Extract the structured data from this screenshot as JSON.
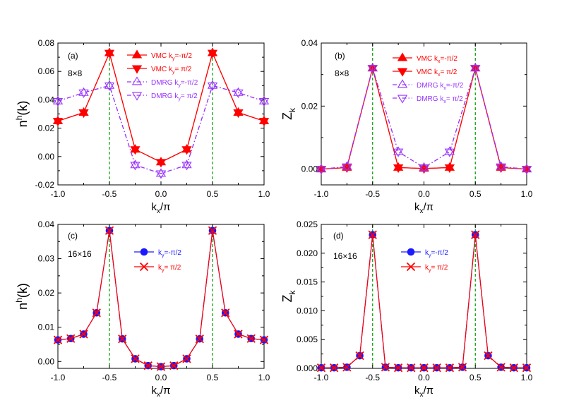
{
  "colors": {
    "vmc": "#ff0000",
    "dmrg": "#9933ff",
    "blue": "#1a1aff",
    "guide": "#009900"
  },
  "chart_data": [
    {
      "id": "a",
      "type": "line",
      "panel_label": "(a)",
      "size_label": "8×8",
      "xlabel": "kx/π",
      "ylabel": "nh(k)",
      "ylabel_sup": "h",
      "ylabel_base": "n",
      "ylabel_tail": "(k)",
      "xlim": [
        -1.0,
        1.0
      ],
      "ylim": [
        -0.02,
        0.08
      ],
      "xticks": [
        "-1.0",
        "-0.5",
        "0.0",
        "0.5",
        "1.0"
      ],
      "xtick_values": [
        -1.0,
        -0.5,
        0.0,
        0.5,
        1.0
      ],
      "yticks": [
        "-0.02",
        "0.00",
        "0.02",
        "0.04",
        "0.06",
        "0.08"
      ],
      "ytick_values": [
        -0.02,
        0.0,
        0.02,
        0.04,
        0.06,
        0.08
      ],
      "guides": [
        -0.5,
        0.5
      ],
      "series": [
        {
          "method": "VMC",
          "k": "ky=-π/2",
          "k_sub": "y",
          "k_val": "=-π/2",
          "marker": "tri-up-filled",
          "color": "#ff0000",
          "dash": "",
          "x": [
            -1.0,
            -0.75,
            -0.5,
            -0.25,
            0.0,
            0.25,
            0.5,
            0.75,
            1.0
          ],
          "values": [
            0.025,
            0.031,
            0.073,
            0.005,
            -0.004,
            0.005,
            0.073,
            0.031,
            0.025
          ]
        },
        {
          "method": "VMC",
          "k": "ky= π/2",
          "k_sub": "y",
          "k_val": "= π/2",
          "marker": "tri-down-filled",
          "color": "#ff0000",
          "dash": "",
          "x": [
            -1.0,
            -0.75,
            -0.5,
            -0.25,
            0.0,
            0.25,
            0.5,
            0.75,
            1.0
          ],
          "values": [
            0.025,
            0.031,
            0.073,
            0.005,
            -0.004,
            0.005,
            0.073,
            0.031,
            0.025
          ]
        },
        {
          "method": "DMRG",
          "k": "ky=-π/2",
          "k_sub": "y",
          "k_val": "=-π/2",
          "marker": "tri-up-open",
          "color": "#9933ff",
          "dash": "6,3,1.5,3",
          "x": [
            -1.0,
            -0.75,
            -0.5,
            -0.25,
            0.0,
            0.25,
            0.5,
            0.75,
            1.0
          ],
          "values": [
            0.039,
            0.045,
            0.05,
            -0.006,
            -0.012,
            -0.006,
            0.05,
            0.045,
            0.039
          ]
        },
        {
          "method": "DMRG",
          "k": "ky= π/2",
          "k_sub": "y",
          "k_val": "= π/2",
          "marker": "tri-down-open",
          "color": "#9933ff",
          "dash": "6,3,1.5,3",
          "x": [
            -1.0,
            -0.75,
            -0.5,
            -0.25,
            0.0,
            0.25,
            0.5,
            0.75,
            1.0
          ],
          "values": [
            0.039,
            0.045,
            0.05,
            -0.006,
            -0.012,
            -0.006,
            0.05,
            0.045,
            0.039
          ]
        }
      ]
    },
    {
      "id": "b",
      "type": "line",
      "panel_label": "(b)",
      "size_label": "8×8",
      "xlabel": "kx/π",
      "ylabel": "Zk",
      "ylabel_base": "Z",
      "ylabel_sub": "k",
      "xlim": [
        -1.0,
        1.0
      ],
      "ylim": [
        -0.005,
        0.04
      ],
      "xticks": [
        "-1.0",
        "-0.5",
        "0.0",
        "0.5",
        "1.0"
      ],
      "xtick_values": [
        -1.0,
        -0.5,
        0.0,
        0.5,
        1.0
      ],
      "yticks": [
        "0.00",
        "0.02",
        "0.04"
      ],
      "ytick_values": [
        0.0,
        0.02,
        0.04
      ],
      "guides": [
        -0.5,
        0.5
      ],
      "series": [
        {
          "method": "VMC",
          "k": "kx=-π/2",
          "k_sub": "x",
          "k_val": "=-π/2",
          "marker": "tri-up-filled",
          "color": "#ff0000",
          "dash": "",
          "x": [
            -1.0,
            -0.75,
            -0.5,
            -0.25,
            0.0,
            0.25,
            0.5,
            0.75,
            1.0
          ],
          "values": [
            0.0,
            0.0005,
            0.032,
            0.0005,
            0.0002,
            0.0005,
            0.032,
            0.0005,
            0.0
          ]
        },
        {
          "method": "VMC",
          "k": "kx= π/2",
          "k_sub": "x",
          "k_val": "= π/2",
          "marker": "tri-down-filled",
          "color": "#ff0000",
          "dash": "",
          "x": [
            -1.0,
            -0.75,
            -0.5,
            -0.25,
            0.0,
            0.25,
            0.5,
            0.75,
            1.0
          ],
          "values": [
            0.0,
            0.0005,
            0.032,
            0.0005,
            0.0002,
            0.0005,
            0.032,
            0.0005,
            0.0
          ]
        },
        {
          "method": "DMRG",
          "k": "kx=-π/2",
          "k_sub": "x",
          "k_val": "=-π/2",
          "marker": "tri-up-open",
          "color": "#9933ff",
          "dash": "6,3,1.5,3",
          "x": [
            -1.0,
            -0.75,
            -0.5,
            -0.25,
            0.0,
            0.25,
            0.5,
            0.75,
            1.0
          ],
          "values": [
            0.0,
            0.0008,
            0.032,
            0.0055,
            0.0005,
            0.0055,
            0.032,
            0.0008,
            0.0
          ]
        },
        {
          "method": "DMRG",
          "k": "kx= π/2",
          "k_sub": "x",
          "k_val": "= π/2",
          "marker": "tri-down-open",
          "color": "#9933ff",
          "dash": "6,3,1.5,3",
          "x": [
            -1.0,
            -0.75,
            -0.5,
            -0.25,
            0.0,
            0.25,
            0.5,
            0.75,
            1.0
          ],
          "values": [
            0.0,
            0.0008,
            0.032,
            0.0055,
            0.0005,
            0.0055,
            0.032,
            0.0008,
            0.0
          ]
        }
      ]
    },
    {
      "id": "c",
      "type": "line",
      "panel_label": "(c)",
      "size_label": "16×16",
      "xlabel": "kx/π",
      "ylabel": "nh(k)",
      "ylabel_sup": "h",
      "ylabel_base": "n",
      "ylabel_tail": "(k)",
      "xlim": [
        -1.0,
        1.0
      ],
      "ylim": [
        -0.002,
        0.04
      ],
      "xticks": [
        "-1.0",
        "-0.5",
        "0.0",
        "0.5",
        "1.0"
      ],
      "xtick_values": [
        -1.0,
        -0.5,
        0.0,
        0.5,
        1.0
      ],
      "yticks": [
        "0.00",
        "0.01",
        "0.02",
        "0.03",
        "0.04"
      ],
      "ytick_values": [
        0.0,
        0.01,
        0.02,
        0.03,
        0.04
      ],
      "guides": [
        -0.5,
        0.5
      ],
      "series": [
        {
          "method": "",
          "k": "ky=-π/2",
          "k_sub": "y",
          "k_val": "=-π/2",
          "marker": "circle-filled",
          "color": "#1a1aff",
          "dash": "",
          "x": [
            -1.0,
            -0.875,
            -0.75,
            -0.625,
            -0.5,
            -0.375,
            -0.25,
            -0.125,
            0.0,
            0.125,
            0.25,
            0.375,
            0.5,
            0.625,
            0.75,
            0.875,
            1.0
          ],
          "values": [
            0.0063,
            0.0067,
            0.008,
            0.0142,
            0.0382,
            0.0066,
            0.0008,
            -0.0012,
            -0.0015,
            -0.0012,
            0.0008,
            0.0066,
            0.0382,
            0.0142,
            0.008,
            0.0067,
            0.0063
          ]
        },
        {
          "method": "",
          "k": "ky= π/2",
          "k_sub": "y",
          "k_val": "= π/2",
          "marker": "cross",
          "color": "#ff0000",
          "dash": "",
          "x": [
            -1.0,
            -0.875,
            -0.75,
            -0.625,
            -0.5,
            -0.375,
            -0.25,
            -0.125,
            0.0,
            0.125,
            0.25,
            0.375,
            0.5,
            0.625,
            0.75,
            0.875,
            1.0
          ],
          "values": [
            0.0063,
            0.0067,
            0.008,
            0.0142,
            0.0382,
            0.0066,
            0.0008,
            -0.0012,
            -0.0015,
            -0.0012,
            0.0008,
            0.0066,
            0.0382,
            0.0142,
            0.008,
            0.0067,
            0.0063
          ]
        }
      ]
    },
    {
      "id": "d",
      "type": "line",
      "panel_label": "(d)",
      "size_label": "16×16",
      "xlabel": "kx/π",
      "ylabel": "Zk",
      "ylabel_base": "Z",
      "ylabel_sub": "k",
      "xlim": [
        -1.0,
        1.0
      ],
      "ylim": [
        0.0,
        0.025
      ],
      "xticks": [
        "-1.0",
        "-0.5",
        "0.0",
        "0.5",
        "1.0"
      ],
      "xtick_values": [
        -1.0,
        -0.5,
        0.0,
        0.5,
        1.0
      ],
      "yticks": [
        "0.000",
        "0.005",
        "0.010",
        "0.015",
        "0.020",
        "0.025"
      ],
      "ytick_values": [
        0.0,
        0.005,
        0.01,
        0.015,
        0.02,
        0.025
      ],
      "guides": [
        -0.5,
        0.5
      ],
      "series": [
        {
          "method": "",
          "k": "ky=-π/2",
          "k_sub": "y",
          "k_val": "=-π/2",
          "marker": "circle-filled",
          "color": "#1a1aff",
          "dash": "",
          "x": [
            -1.0,
            -0.875,
            -0.75,
            -0.625,
            -0.5,
            -0.375,
            -0.25,
            -0.125,
            0.0,
            0.125,
            0.25,
            0.375,
            0.5,
            0.625,
            0.75,
            0.875,
            1.0
          ],
          "values": [
            0.0001,
            0.0001,
            0.0002,
            0.0022,
            0.0232,
            0.0002,
            0.0001,
            0.0001,
            0.0001,
            0.0001,
            0.0001,
            0.0002,
            0.0232,
            0.0022,
            0.0002,
            0.0001,
            0.0001
          ]
        },
        {
          "method": "",
          "k": "ky= π/2",
          "k_sub": "y",
          "k_val": "= π/2",
          "marker": "cross",
          "color": "#ff0000",
          "dash": "",
          "x": [
            -1.0,
            -0.875,
            -0.75,
            -0.625,
            -0.5,
            -0.375,
            -0.25,
            -0.125,
            0.0,
            0.125,
            0.25,
            0.375,
            0.5,
            0.625,
            0.75,
            0.875,
            1.0
          ],
          "values": [
            0.0001,
            0.0001,
            0.0002,
            0.0022,
            0.0232,
            0.0002,
            0.0001,
            0.0001,
            0.0001,
            0.0001,
            0.0001,
            0.0002,
            0.0232,
            0.0022,
            0.0002,
            0.0001,
            0.0001
          ]
        }
      ]
    }
  ]
}
